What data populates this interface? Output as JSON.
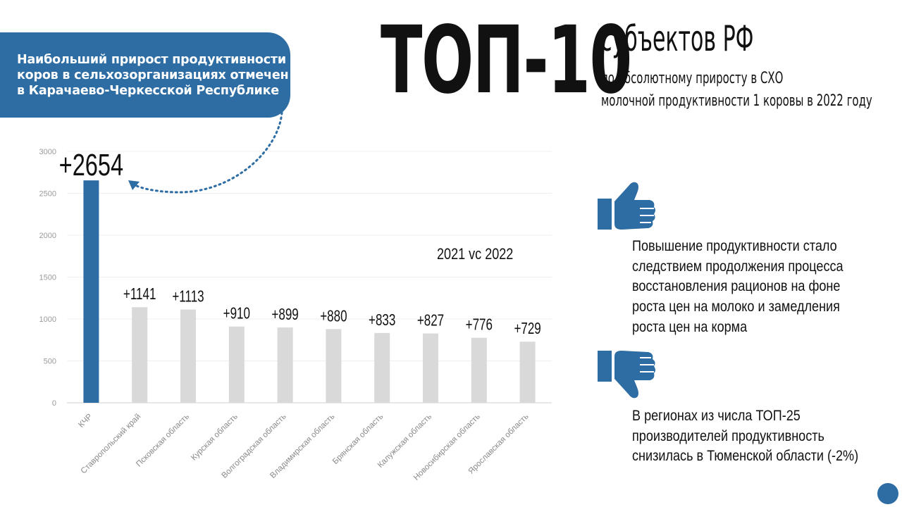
{
  "callout": {
    "lines": [
      "Наибольший прирост продуктивности",
      "коров в сельхозорганизациях отмечен",
      "в Карачаево-Черкесской Республике"
    ]
  },
  "header": {
    "title": "ТОП-10",
    "title_suffix": "субъектов РФ",
    "subtitle_line1": "по абсолютному приросту в СХО",
    "subtitle_line2": "молочной продуктивности 1 коровы в 2022 году"
  },
  "period_label": "2021 vc 2022",
  "notes": {
    "positive": [
      "Повышение продуктивности стало",
      "следствием продолжения процесса",
      "восстановления рационов на фоне",
      "роста цен на молоко и замедления",
      "роста цен на корма"
    ],
    "negative": [
      "В регионах из числа ТОП-25",
      "производителей продуктивность",
      "снизилась в Тюменской области (-2%)"
    ]
  },
  "icons": {
    "positive": "thumbs-up-icon",
    "negative": "thumbs-down-icon"
  },
  "colors": {
    "accent": "#2e6da4",
    "highlight_bar": "#2e6da4",
    "other_bars": "#d9d9d9"
  },
  "chart_data": {
    "type": "bar",
    "categories": [
      "КЧР",
      "Ставропольский край",
      "Псковская область",
      "Курская область",
      "Волгоградская область",
      "Владимирская область",
      "Брянская область",
      "Калужская область",
      "Новосибирская область",
      "Ярославская область"
    ],
    "values": [
      2654,
      1141,
      1113,
      910,
      899,
      880,
      833,
      827,
      776,
      729
    ],
    "data_labels": [
      "+2654",
      "+1141",
      "+1113",
      "+910",
      "+899",
      "+880",
      "+833",
      "+827",
      "+776",
      "+729"
    ],
    "ylim": [
      0,
      3000
    ],
    "yticks": [
      0,
      500,
      1000,
      1500,
      2000,
      2500,
      3000
    ],
    "highlight_index": 0,
    "grid": true,
    "legend": "none"
  }
}
